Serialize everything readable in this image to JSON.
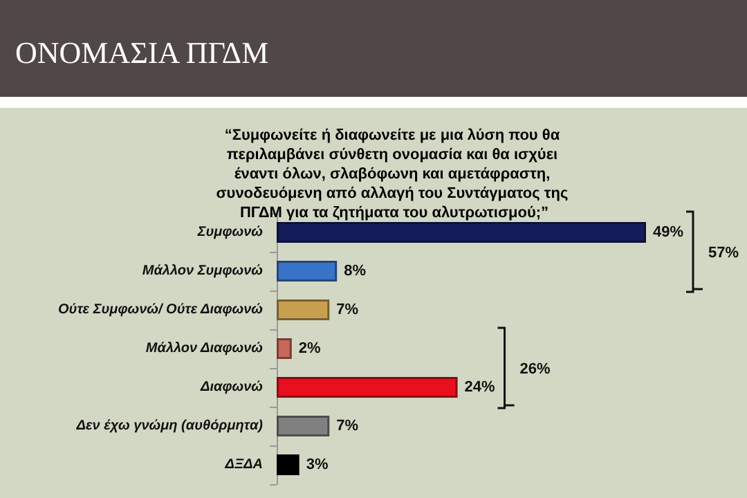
{
  "chart_data": {
    "type": "bar",
    "orientation": "horizontal",
    "title": "ΟΝΟΜΑΣΙΑ ΠΓΔΜ",
    "subtitle": "“Συμφωνείτε ή διαφωνείτε με μια λύση που θα περιλαμβάνει σύνθετη ονομασία και θα ισχύει έναντι όλων, σλαβόφωνη και αμετάφραστη, συνοδευόμενη από αλλαγή του Συντάγματος της ΠΓΔΜ για τα ζητήματα του αλυτρωτισμού;”",
    "categories": [
      "Συμφωνώ",
      "Μάλλον Συμφωνώ",
      "Ούτε Συμφωνώ/ Ούτε Διαφωνώ",
      "Μάλλον Διαφωνώ",
      "Διαφωνώ",
      "Δεν έχω γνώμη (αυθόρμητα)",
      "ΔΞΔΑ"
    ],
    "values": [
      49,
      8,
      7,
      2,
      24,
      7,
      3
    ],
    "colors": [
      "#141c5c",
      "#3a74c8",
      "#c8a050",
      "#c86858",
      "#e8101e",
      "#808080",
      "#000000"
    ],
    "value_labels": [
      "49%",
      "8%",
      "7%",
      "2%",
      "24%",
      "7%",
      "3%"
    ],
    "annotations": [
      "57%",
      "26%"
    ]
  }
}
